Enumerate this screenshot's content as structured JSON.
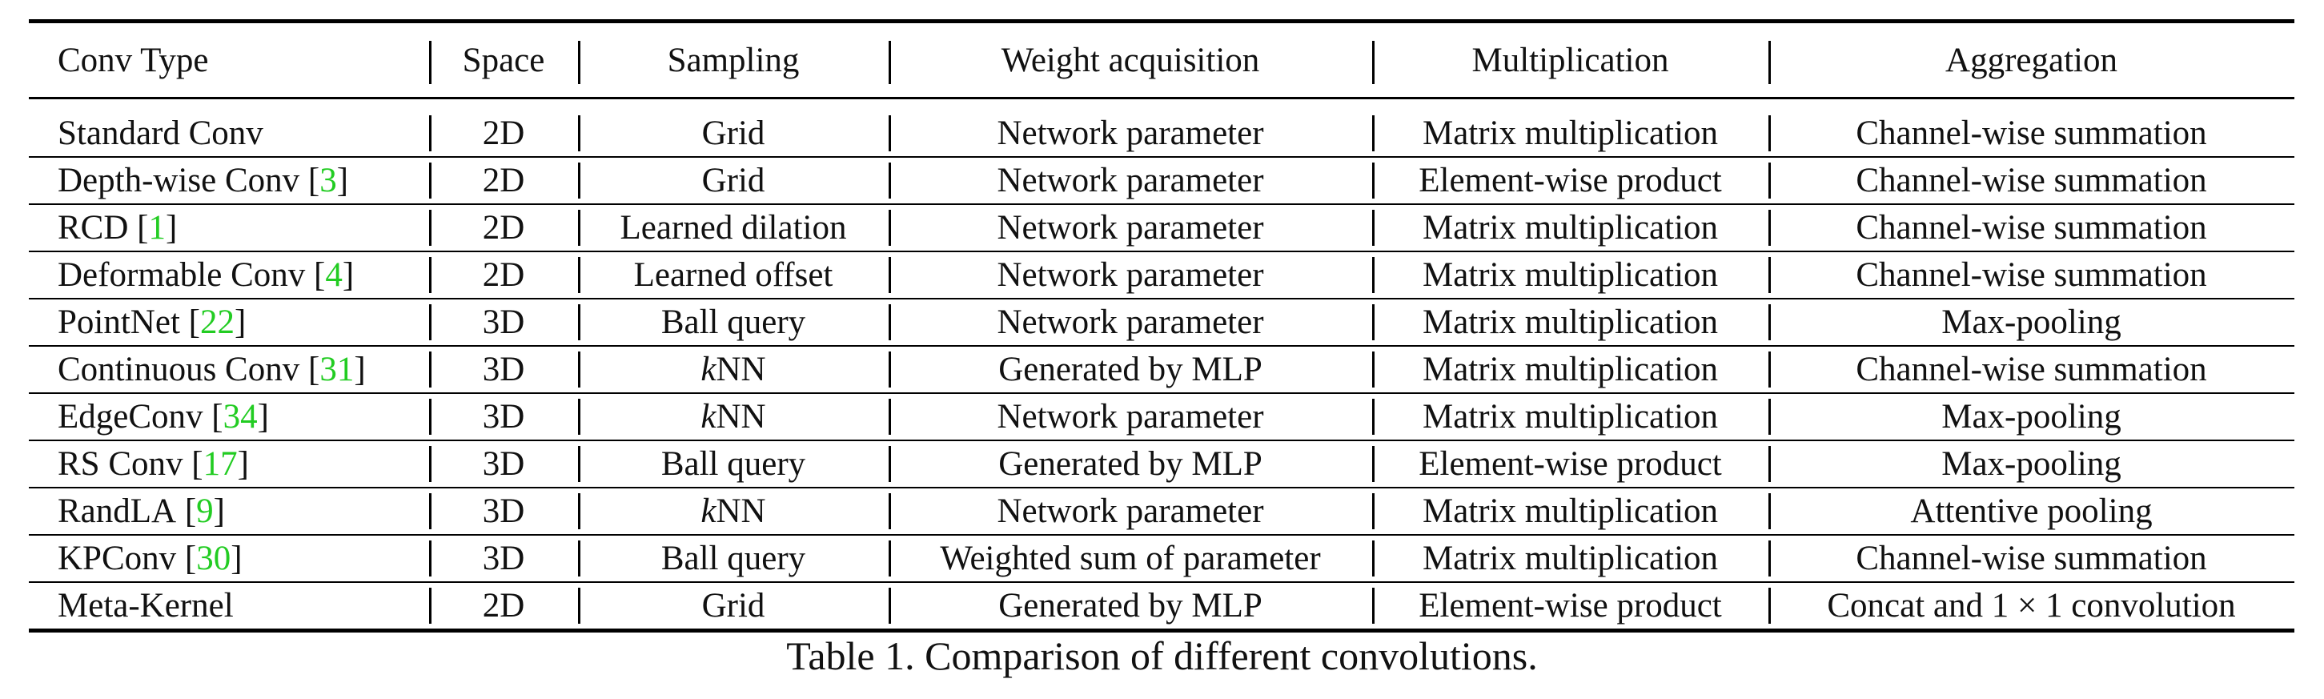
{
  "headers": [
    "Conv Type",
    "Space",
    "Sampling",
    "Weight acquisition",
    "Multiplication",
    "Aggregation"
  ],
  "rows": [
    {
      "name": "Standard Conv",
      "cite": "",
      "space": "2D",
      "sampling": "Grid",
      "weight": "Network parameter",
      "mult": "Matrix multiplication",
      "agg": "Channel-wise summation"
    },
    {
      "name": "Depth-wise Conv",
      "cite": "3",
      "space": "2D",
      "sampling": "Grid",
      "weight": "Network parameter",
      "mult": "Element-wise product",
      "agg": "Channel-wise summation"
    },
    {
      "name": "RCD",
      "cite": "1",
      "space": "2D",
      "sampling": "Learned dilation",
      "weight": "Network parameter",
      "mult": "Matrix multiplication",
      "agg": "Channel-wise summation"
    },
    {
      "name": "Deformable Conv",
      "cite": "4",
      "space": "2D",
      "sampling": "Learned offset",
      "weight": "Network parameter",
      "mult": "Matrix multiplication",
      "agg": "Channel-wise summation"
    },
    {
      "name": "PointNet",
      "cite": "22",
      "space": "3D",
      "sampling": "Ball query",
      "weight": "Network parameter",
      "mult": "Matrix multiplication",
      "agg": "Max-pooling"
    },
    {
      "name": "Continuous Conv",
      "cite": "31",
      "space": "3D",
      "sampling": "kNN",
      "weight": "Generated by MLP",
      "mult": "Matrix multiplication",
      "agg": "Channel-wise summation"
    },
    {
      "name": "EdgeConv",
      "cite": "34",
      "space": "3D",
      "sampling": "kNN",
      "weight": "Network parameter",
      "mult": "Matrix multiplication",
      "agg": "Max-pooling"
    },
    {
      "name": "RS Conv",
      "cite": "17",
      "space": "3D",
      "sampling": "Ball query",
      "weight": "Generated by MLP",
      "mult": "Element-wise product",
      "agg": "Max-pooling"
    },
    {
      "name": "RandLA",
      "cite": "9",
      "space": "3D",
      "sampling": "kNN",
      "weight": "Network parameter",
      "mult": "Matrix multiplication",
      "agg": "Attentive pooling"
    },
    {
      "name": "KPConv",
      "cite": "30",
      "space": "3D",
      "sampling": "Ball query",
      "weight": "Weighted sum of parameter",
      "mult": "Matrix multiplication",
      "agg": "Channel-wise summation"
    },
    {
      "name": "Meta-Kernel",
      "cite": "",
      "space": "2D",
      "sampling": "Grid",
      "weight": "Generated by MLP",
      "mult": "Element-wise product",
      "agg": "Concat and 1 × 1 convolution"
    }
  ],
  "caption": "Table 1. Comparison of different convolutions.",
  "colors": {
    "citation": "#22cc22",
    "rule": "#000000"
  }
}
